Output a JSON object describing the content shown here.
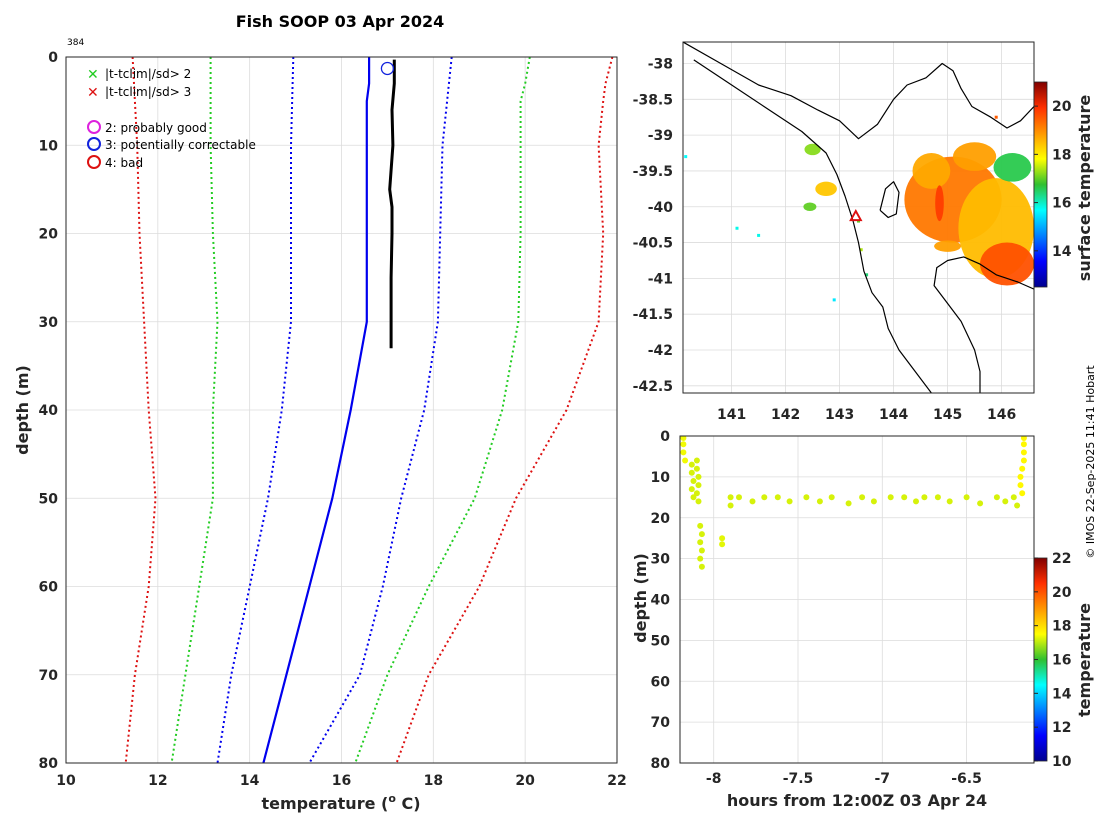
{
  "title": "Fish SOOP 03 Apr 2024",
  "profile_id": "384",
  "credit": "© IMOS 22-Sep-2025 11:41 Hobart",
  "legend": {
    "flag_items": [
      {
        "symbol": "✕",
        "color": "#22cc22",
        "label": "|t-tclim|/sd> 2"
      },
      {
        "symbol": "✕",
        "color": "#dd1111",
        "label": "|t-tclim|/sd> 3"
      }
    ],
    "qc_items": [
      {
        "color": "#dd22dd",
        "label": "2: probably good"
      },
      {
        "color": "#1122dd",
        "label": "3: potentially correctable"
      },
      {
        "color": "#dd1111",
        "label": "4: bad"
      }
    ]
  },
  "colors": {
    "mean": "#0000ee",
    "sd2": "#22cc22",
    "sd3": "#dd1111",
    "profile": "#000000",
    "coast": "#000000",
    "marker": "#dd1111"
  },
  "chart_data": [
    {
      "type": "line",
      "id": "profile",
      "title": "Fish SOOP 03 Apr 2024",
      "xlabel": "temperature (° C)",
      "xlabel_parts": {
        "main": "temperature (",
        "sup": "o",
        "end": " C)"
      },
      "ylabel": "depth (m)",
      "xlim": [
        10,
        22
      ],
      "ylim": [
        0,
        80
      ],
      "xticks": [
        10,
        12,
        14,
        16,
        18,
        20,
        22
      ],
      "yticks": [
        0,
        10,
        20,
        30,
        40,
        50,
        60,
        70,
        80
      ],
      "grid": true,
      "series": [
        {
          "name": "clim -3sd",
          "style": "sd3",
          "dotted": true,
          "points": [
            [
              11.45,
              0
            ],
            [
              11.5,
              5
            ],
            [
              11.55,
              10
            ],
            [
              11.6,
              20
            ],
            [
              11.7,
              30
            ],
            [
              11.8,
              40
            ],
            [
              11.95,
              50
            ],
            [
              11.8,
              60
            ],
            [
              11.5,
              70
            ],
            [
              11.3,
              80
            ]
          ]
        },
        {
          "name": "clim -2sd",
          "style": "sd2",
          "dotted": true,
          "points": [
            [
              13.15,
              0
            ],
            [
              13.15,
              5
            ],
            [
              13.15,
              10
            ],
            [
              13.2,
              20
            ],
            [
              13.3,
              30
            ],
            [
              13.2,
              40
            ],
            [
              13.2,
              50
            ],
            [
              12.9,
              60
            ],
            [
              12.6,
              70
            ],
            [
              12.3,
              80
            ]
          ]
        },
        {
          "name": "clim -1sd",
          "style": "mean",
          "dotted": true,
          "points": [
            [
              14.95,
              0
            ],
            [
              14.9,
              10
            ],
            [
              14.9,
              20
            ],
            [
              14.9,
              30
            ],
            [
              14.7,
              40
            ],
            [
              14.4,
              50
            ],
            [
              14.0,
              60
            ],
            [
              13.6,
              70
            ],
            [
              13.3,
              80
            ]
          ]
        },
        {
          "name": "clim mean",
          "style": "mean",
          "dotted": false,
          "points": [
            [
              16.6,
              0
            ],
            [
              16.6,
              3
            ],
            [
              16.55,
              5
            ],
            [
              16.55,
              10
            ],
            [
              16.55,
              20
            ],
            [
              16.55,
              30
            ],
            [
              16.2,
              40
            ],
            [
              15.8,
              50
            ],
            [
              15.3,
              60
            ],
            [
              14.8,
              70
            ],
            [
              14.3,
              80
            ]
          ]
        },
        {
          "name": "clim +1sd",
          "style": "mean",
          "dotted": true,
          "points": [
            [
              18.4,
              0
            ],
            [
              18.3,
              5
            ],
            [
              18.2,
              10
            ],
            [
              18.15,
              20
            ],
            [
              18.1,
              30
            ],
            [
              17.8,
              40
            ],
            [
              17.3,
              50
            ],
            [
              16.9,
              60
            ],
            [
              16.4,
              70
            ],
            [
              15.3,
              80
            ]
          ]
        },
        {
          "name": "clim +2sd",
          "style": "sd2",
          "dotted": true,
          "points": [
            [
              20.1,
              0
            ],
            [
              20.0,
              3
            ],
            [
              19.9,
              5
            ],
            [
              19.9,
              10
            ],
            [
              19.9,
              20
            ],
            [
              19.85,
              30
            ],
            [
              19.5,
              40
            ],
            [
              18.9,
              50
            ],
            [
              17.9,
              60
            ],
            [
              17.0,
              70
            ],
            [
              16.3,
              80
            ]
          ]
        },
        {
          "name": "clim +3sd",
          "style": "sd3",
          "dotted": true,
          "points": [
            [
              21.9,
              0
            ],
            [
              21.75,
              3
            ],
            [
              21.7,
              5
            ],
            [
              21.6,
              10
            ],
            [
              21.7,
              20
            ],
            [
              21.6,
              30
            ],
            [
              20.9,
              40
            ],
            [
              19.8,
              50
            ],
            [
              19.0,
              60
            ],
            [
              17.9,
              70
            ],
            [
              17.2,
              80
            ]
          ]
        },
        {
          "name": "observed",
          "style": "profile",
          "dotted": false,
          "width": 3,
          "points": [
            [
              17.15,
              0.3
            ],
            [
              17.15,
              3
            ],
            [
              17.1,
              6
            ],
            [
              17.12,
              10
            ],
            [
              17.05,
              15
            ],
            [
              17.1,
              17
            ],
            [
              17.1,
              20
            ],
            [
              17.08,
              25
            ],
            [
              17.08,
              30
            ],
            [
              17.08,
              33
            ]
          ]
        }
      ],
      "markers": [
        {
          "name": "qc3 marker",
          "x": 17.0,
          "y": 1.3,
          "color": "#1122dd"
        }
      ]
    },
    {
      "type": "heatmap",
      "id": "map",
      "colorbar_label": "surface temperature",
      "xlim": [
        140.1,
        146.6
      ],
      "ylim": [
        -42.6,
        -37.7
      ],
      "xticks": [
        141,
        142,
        143,
        144,
        145,
        146
      ],
      "yticks": [
        -38,
        -38.5,
        -39,
        -39.5,
        -40,
        -40.5,
        -41,
        -41.5,
        -42,
        -42.5
      ],
      "yticklabels": [
        "-38",
        "-38.5",
        "-39",
        "-39.5",
        "-40",
        "-40.5",
        "-41",
        "-41.5",
        "-42",
        "-42.5"
      ],
      "clim": [
        12.5,
        21
      ],
      "cticks": [
        14,
        16,
        18,
        20
      ],
      "drop": {
        "lon": 143.3,
        "lat": -40.13,
        "marker": "triangle"
      },
      "sst_blobs": [
        {
          "lon": 145.1,
          "lat": -39.9,
          "rlon": 0.9,
          "rlat": 0.6,
          "temp": 19.2
        },
        {
          "lon": 145.9,
          "lat": -40.3,
          "rlon": 0.7,
          "rlat": 0.7,
          "temp": 18.5
        },
        {
          "lon": 146.1,
          "lat": -40.8,
          "rlon": 0.5,
          "rlat": 0.3,
          "temp": 19.6
        },
        {
          "lon": 144.7,
          "lat": -39.5,
          "rlon": 0.35,
          "rlat": 0.25,
          "temp": 18.7
        },
        {
          "lon": 145.5,
          "lat": -39.3,
          "rlon": 0.4,
          "rlat": 0.2,
          "temp": 18.8
        },
        {
          "lon": 146.2,
          "lat": -39.45,
          "rlon": 0.35,
          "rlat": 0.2,
          "temp": 16.6
        },
        {
          "lon": 142.75,
          "lat": -39.75,
          "rlon": 0.2,
          "rlat": 0.1,
          "temp": 18.4
        },
        {
          "lon": 142.5,
          "lat": -39.2,
          "rlon": 0.15,
          "rlat": 0.08,
          "temp": 17.2
        },
        {
          "lon": 142.45,
          "lat": -40.0,
          "rlon": 0.12,
          "rlat": 0.06,
          "temp": 17.0
        },
        {
          "lon": 145.0,
          "lat": -40.55,
          "rlon": 0.25,
          "rlat": 0.08,
          "temp": 18.8
        },
        {
          "lon": 144.85,
          "lat": -39.95,
          "rlon": 0.08,
          "rlat": 0.25,
          "temp": 19.8
        }
      ],
      "sst_specks": [
        [
          141.1,
          -40.3,
          15.8
        ],
        [
          141.5,
          -40.4,
          15.8
        ],
        [
          143.4,
          -40.6,
          17.4
        ],
        [
          143.5,
          -40.95,
          16.4
        ],
        [
          142.9,
          -41.3,
          15.5
        ],
        [
          140.15,
          -39.3,
          15.7
        ],
        [
          145.9,
          -38.75,
          19.5
        ],
        [
          143.35,
          -40.2,
          17.0
        ]
      ],
      "coastlines": [
        [
          [
            140.1,
            -37.7
          ],
          [
            140.8,
            -38.0
          ],
          [
            141.5,
            -38.3
          ],
          [
            142.1,
            -38.45
          ],
          [
            142.6,
            -38.65
          ],
          [
            143.0,
            -38.8
          ],
          [
            143.35,
            -39.05
          ],
          [
            143.7,
            -38.85
          ],
          [
            144.0,
            -38.5
          ],
          [
            144.25,
            -38.3
          ],
          [
            144.6,
            -38.2
          ],
          [
            144.9,
            -38.0
          ],
          [
            145.1,
            -38.1
          ],
          [
            145.25,
            -38.35
          ],
          [
            145.45,
            -38.6
          ],
          [
            145.8,
            -38.75
          ],
          [
            146.1,
            -38.9
          ],
          [
            146.35,
            -38.8
          ],
          [
            146.6,
            -38.6
          ]
        ],
        [
          [
            143.75,
            -40.05
          ],
          [
            143.85,
            -39.75
          ],
          [
            144.0,
            -39.65
          ],
          [
            144.1,
            -39.8
          ],
          [
            144.05,
            -40.1
          ],
          [
            143.9,
            -40.15
          ],
          [
            143.75,
            -40.05
          ]
        ],
        [
          [
            146.6,
            -41.15
          ],
          [
            146.3,
            -41.05
          ],
          [
            145.9,
            -40.95
          ],
          [
            145.6,
            -40.8
          ],
          [
            145.3,
            -40.7
          ],
          [
            145.0,
            -40.75
          ],
          [
            144.8,
            -40.85
          ],
          [
            144.75,
            -41.1
          ],
          [
            144.95,
            -41.3
          ],
          [
            145.25,
            -41.6
          ],
          [
            145.5,
            -42.0
          ],
          [
            145.6,
            -42.3
          ],
          [
            145.6,
            -42.6
          ]
        ],
        [
          [
            144.7,
            -42.6
          ],
          [
            144.4,
            -42.3
          ],
          [
            144.1,
            -42.0
          ],
          [
            143.9,
            -41.7
          ],
          [
            143.8,
            -41.4
          ],
          [
            143.6,
            -41.2
          ],
          [
            143.45,
            -40.9
          ],
          [
            143.35,
            -40.5
          ],
          [
            143.25,
            -40.2
          ],
          [
            143.1,
            -39.85
          ],
          [
            142.95,
            -39.55
          ],
          [
            142.75,
            -39.25
          ],
          [
            142.3,
            -38.95
          ],
          [
            141.6,
            -38.6
          ],
          [
            140.9,
            -38.25
          ],
          [
            140.3,
            -37.95
          ]
        ]
      ]
    },
    {
      "type": "scatter",
      "id": "track",
      "xlabel": "hours from 12:00Z 03 Apr 24",
      "ylabel": "depth (m)",
      "colorbar_label": "temperature",
      "xlim": [
        -8.2,
        -6.1
      ],
      "ylim": [
        0,
        80
      ],
      "xticks": [
        -8,
        -7.5,
        -7,
        -6.5
      ],
      "xticklabels": [
        "-8",
        "-7.5",
        "-7",
        "-6.5"
      ],
      "yticks": [
        0,
        10,
        20,
        30,
        40,
        50,
        60,
        70,
        80
      ],
      "clim": [
        10,
        22
      ],
      "cticks": [
        10,
        12,
        14,
        16,
        18,
        20,
        22
      ],
      "points": [
        [
          -8.18,
          0.5,
          17.4
        ],
        [
          -8.18,
          2,
          17.4
        ],
        [
          -8.18,
          4,
          17.4
        ],
        [
          -8.17,
          6,
          17.4
        ],
        [
          -8.13,
          7,
          17.2
        ],
        [
          -8.13,
          9,
          17.2
        ],
        [
          -8.12,
          11,
          17.2
        ],
        [
          -8.13,
          13,
          17.2
        ],
        [
          -8.12,
          15,
          17.2
        ],
        [
          -8.1,
          6,
          17.2
        ],
        [
          -8.1,
          8,
          17.2
        ],
        [
          -8.09,
          10,
          17.2
        ],
        [
          -8.09,
          12,
          17.2
        ],
        [
          -8.1,
          14,
          17.2
        ],
        [
          -8.09,
          16,
          17.2
        ],
        [
          -8.08,
          22,
          17.2
        ],
        [
          -8.07,
          24,
          17.2
        ],
        [
          -8.08,
          26,
          17.2
        ],
        [
          -8.07,
          28,
          17.2
        ],
        [
          -8.08,
          30,
          17.2
        ],
        [
          -8.07,
          32,
          17.2
        ],
        [
          -7.95,
          25,
          17.3
        ],
        [
          -7.95,
          26.5,
          17.3
        ],
        [
          -7.9,
          15,
          17.2
        ],
        [
          -7.9,
          17,
          17.2
        ],
        [
          -7.85,
          15,
          17.2
        ],
        [
          -7.77,
          16,
          17.2
        ],
        [
          -7.7,
          15,
          17.2
        ],
        [
          -7.62,
          15,
          17.2
        ],
        [
          -7.55,
          16,
          17.2
        ],
        [
          -7.45,
          15,
          17.2
        ],
        [
          -7.37,
          16,
          17.2
        ],
        [
          -7.3,
          15,
          17.2
        ],
        [
          -7.2,
          16.5,
          17.2
        ],
        [
          -7.12,
          15,
          17.2
        ],
        [
          -7.05,
          16,
          17.2
        ],
        [
          -6.95,
          15,
          17.2
        ],
        [
          -6.87,
          15,
          17.2
        ],
        [
          -6.8,
          16,
          17.2
        ],
        [
          -6.75,
          15,
          17.2
        ],
        [
          -6.67,
          15,
          17.2
        ],
        [
          -6.6,
          16,
          17.2
        ],
        [
          -6.5,
          15,
          17.2
        ],
        [
          -6.42,
          16.5,
          17.2
        ],
        [
          -6.32,
          15,
          17.2
        ],
        [
          -6.27,
          16,
          17.2
        ],
        [
          -6.22,
          15,
          17.2
        ],
        [
          -6.2,
          17,
          17.2
        ],
        [
          -6.16,
          0.5,
          17.6
        ],
        [
          -6.16,
          2,
          17.6
        ],
        [
          -6.16,
          4,
          17.6
        ],
        [
          -6.16,
          6,
          17.6
        ],
        [
          -6.17,
          8,
          17.6
        ],
        [
          -6.18,
          10,
          17.6
        ],
        [
          -6.18,
          12,
          17.6
        ],
        [
          -6.17,
          14,
          17.6
        ]
      ]
    }
  ]
}
